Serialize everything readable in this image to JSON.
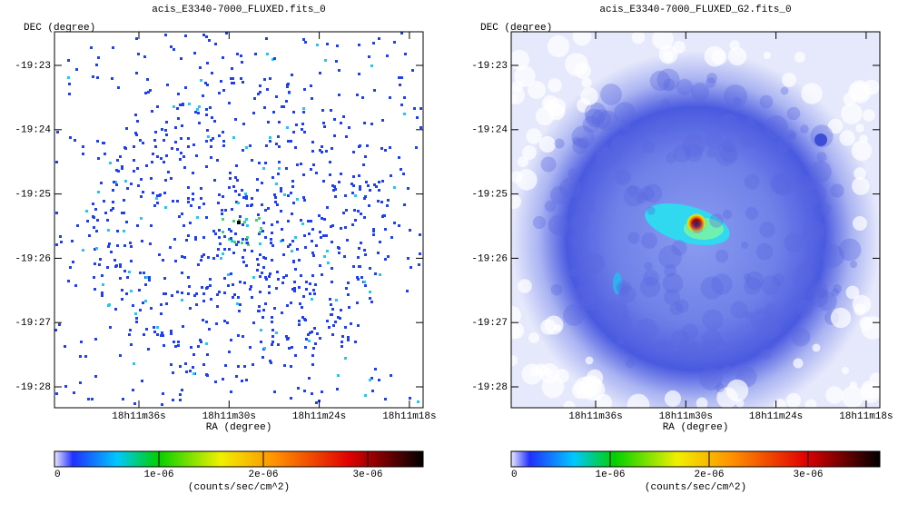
{
  "panels": [
    {
      "title": "acis_E3340-7000_FLUXED.fits_0",
      "y_axis_label": "DEC (degree)",
      "x_axis_label": "RA (degree)",
      "y_ticks": [
        "-19:23",
        "-19:24",
        "-19:25",
        "-19:26",
        "-19:27",
        "-19:28"
      ],
      "x_ticks": [
        "18h11m36s",
        "18h11m30s",
        "18h11m24s",
        "18h11m18s"
      ],
      "colorbar": {
        "ticks": [
          "0",
          "1e-06",
          "2e-06",
          "3e-06"
        ],
        "label": "(counts/sec/cm^2)"
      }
    },
    {
      "title": "acis_E3340-7000_FLUXED_G2.fits_0",
      "y_axis_label": "DEC (degree)",
      "x_axis_label": "RA (degree)",
      "y_ticks": [
        "-19:23",
        "-19:24",
        "-19:25",
        "-19:26",
        "-19:27",
        "-19:28"
      ],
      "x_ticks": [
        "18h11m36s",
        "18h11m30s",
        "18h11m24s",
        "18h11m18s"
      ],
      "colorbar": {
        "ticks": [
          "0",
          "1e-06",
          "2e-06",
          "3e-06"
        ],
        "label": "(counts/sec/cm^2)"
      }
    }
  ]
}
